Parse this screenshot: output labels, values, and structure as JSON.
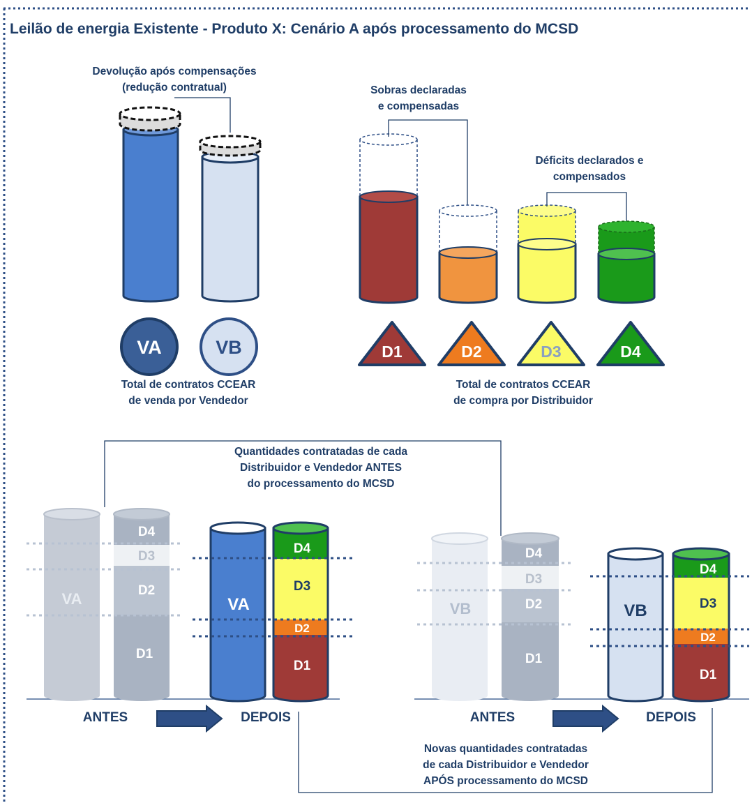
{
  "title": "Leilão de energia Existente - Produto X: Cenário A após processamento do MCSD",
  "top_left": {
    "callout": [
      "Devolução após compensações",
      "(redução contratual)"
    ],
    "circles": [
      {
        "label": "VA",
        "fill": "#3a5f97",
        "text_color": "#ffffff"
      },
      {
        "label": "VB",
        "fill": "#d6e1f1",
        "text_color": "#2e4f86"
      }
    ],
    "caption": [
      "Total de  contratos  CCEAR",
      "de venda por Vendedor"
    ]
  },
  "top_right": {
    "callout_sobras": [
      "Sobras declaradas",
      "e compensadas"
    ],
    "callout_deficits": [
      "Déficits declarados e",
      "compensados"
    ],
    "triangles": [
      {
        "label": "D1",
        "fill": "#9f3a37",
        "text_color": "#ffffff"
      },
      {
        "label": "D2",
        "fill": "#ee7b1f",
        "text_color": "#ffffff"
      },
      {
        "label": "D3",
        "fill": "#fbfb66",
        "text_color": "#1f3d66"
      },
      {
        "label": "D4",
        "fill": "#1a9a1a",
        "text_color": "#ffffff"
      }
    ],
    "caption": [
      "Total de  contratos  CCEAR",
      "de compra  por  Distribuidor"
    ]
  },
  "bottom": {
    "callout_antes": [
      "Quantidades  contratadas  de cada",
      "Distribuidor  e Vendedor  ANTES",
      "do processamento do MCSD"
    ],
    "callout_apos": [
      "Novas quantidades  contratadas",
      "de cada Distribuidor  e Vendedor",
      "APÓS processamento  do MCSD"
    ],
    "left": {
      "antes_label": "ANTES",
      "depois_label": "DEPOIS",
      "seller": "VA",
      "segments": [
        "D4",
        "D3",
        "D2",
        "D1"
      ]
    },
    "right": {
      "antes_label": "ANTES",
      "depois_label": "DEPOIS",
      "seller": "VB",
      "segments": [
        "D4",
        "D3",
        "D2",
        "D1"
      ]
    }
  },
  "colors": {
    "navy": "#1f3d66",
    "va_blue": "#4a7fcf",
    "vb_light": "#d6e1f1",
    "d1": "#9f3a37",
    "d2": "#ee7b1f",
    "d3": "#fbfb66",
    "d4": "#1a9a1a"
  }
}
